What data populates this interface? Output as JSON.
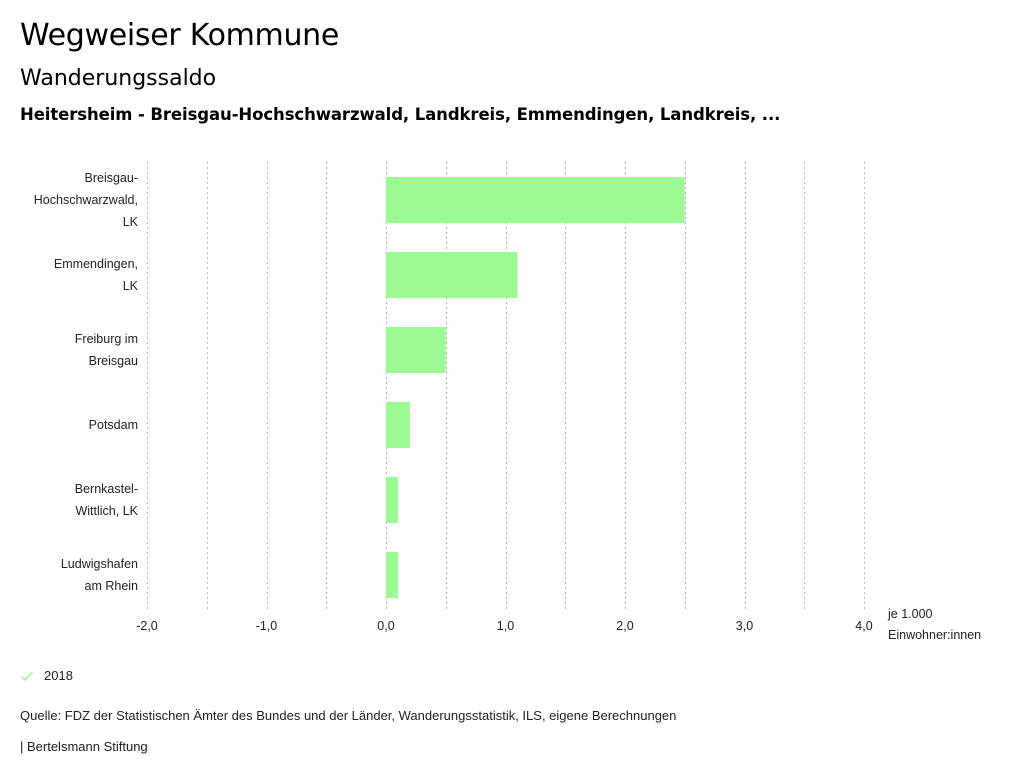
{
  "header": {
    "title": "Wegweiser Kommune",
    "subtitle": "Wanderungssaldo",
    "description": "Heitersheim - Breisgau-Hochschwarzwald, Landkreis, Emmendingen, Landkreis, ..."
  },
  "chart_data": {
    "type": "bar",
    "orientation": "horizontal",
    "title": "Wanderungssaldo",
    "categories": [
      [
        "Breisgau-",
        "Hochschwarzwald,",
        "LK"
      ],
      [
        "Emmendingen,",
        "LK"
      ],
      [
        "Freiburg im",
        "Breisgau"
      ],
      [
        "Potsdam"
      ],
      [
        "Bernkastel-",
        "Wittlich, LK"
      ],
      [
        "Ludwigshafen",
        "am Rhein"
      ]
    ],
    "series": [
      {
        "name": "2018",
        "color": "#9cf994",
        "values": [
          2.5,
          1.1,
          0.5,
          0.2,
          0.1,
          0.1
        ]
      }
    ],
    "xlim": [
      -2.0,
      4.0
    ],
    "xticks": [
      -2.0,
      -1.0,
      0.0,
      1.0,
      2.0,
      3.0,
      4.0
    ],
    "xtick_labels": [
      "-2,0",
      "-1,0",
      "0,0",
      "1,0",
      "2,0",
      "3,0",
      "4,0"
    ],
    "grid_step": 0.5,
    "grid": true,
    "xlabel": [
      "je 1.000",
      "Einwohner:innen"
    ],
    "legend_position": "bottom-left"
  },
  "legend": {
    "label": "2018",
    "icon": "check-icon",
    "color": "#9cf994"
  },
  "footer": {
    "source": "Quelle: FDZ der Statistischen Ämter des Bundes und der Länder, Wanderungsstatistik, ILS, eigene Berechnungen",
    "credit": "| Bertelsmann Stiftung"
  }
}
